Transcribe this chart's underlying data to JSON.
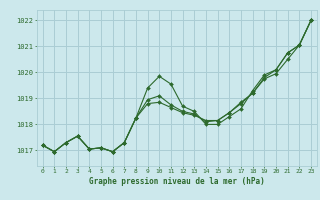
{
  "title": "Graphe pression niveau de la mer (hPa)",
  "bg_color": "#cce8ec",
  "grid_color": "#aacdd4",
  "line_color": "#2d6a2d",
  "xlim": [
    -0.5,
    23.5
  ],
  "ylim": [
    1016.4,
    1022.4
  ],
  "yticks": [
    1017,
    1018,
    1019,
    1020,
    1021,
    1022
  ],
  "xticks": [
    0,
    1,
    2,
    3,
    4,
    5,
    6,
    7,
    8,
    9,
    10,
    11,
    12,
    13,
    14,
    15,
    16,
    17,
    18,
    19,
    20,
    21,
    22,
    23
  ],
  "series1": [
    1017.2,
    1016.95,
    1017.3,
    1017.55,
    1017.05,
    1017.1,
    1016.95,
    1017.3,
    1018.25,
    1019.4,
    1019.85,
    1019.55,
    1018.7,
    1018.5,
    1018.0,
    1018.0,
    1018.3,
    1018.6,
    1019.3,
    1019.9,
    1020.1,
    1020.75,
    1021.05,
    1022.0
  ],
  "series2": [
    1017.2,
    1016.95,
    1017.3,
    1017.55,
    1017.05,
    1017.1,
    1016.95,
    1017.3,
    1018.25,
    1018.95,
    1019.1,
    1018.75,
    1018.5,
    1018.4,
    1018.1,
    1018.15,
    1018.45,
    1018.8,
    1019.2,
    1019.8,
    1020.1,
    1020.75,
    1021.05,
    1022.0
  ],
  "series3": [
    1017.2,
    1016.95,
    1017.3,
    1017.55,
    1017.05,
    1017.1,
    1016.95,
    1017.3,
    1018.25,
    1018.8,
    1018.85,
    1018.65,
    1018.45,
    1018.35,
    1018.15,
    1018.15,
    1018.45,
    1018.85,
    1019.2,
    1019.75,
    1019.95,
    1020.5,
    1021.05,
    1022.0
  ]
}
